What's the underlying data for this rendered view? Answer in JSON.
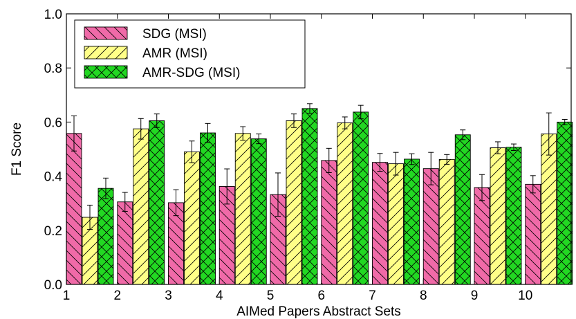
{
  "chart_data": {
    "type": "bar",
    "xlabel": "AIMed Papers Abstract Sets",
    "ylabel": "F1 Score",
    "ylim": [
      0.0,
      1.0
    ],
    "yticks": [
      "0.0",
      "0.2",
      "0.4",
      "0.6",
      "0.8",
      "1.0"
    ],
    "categories": [
      "1",
      "2",
      "3",
      "4",
      "5",
      "6",
      "7",
      "8",
      "9",
      "10"
    ],
    "legend_position": "top-left",
    "series": [
      {
        "name": "SDG (MSI)",
        "color": "#f06aa8",
        "hatch": "backslash",
        "values": [
          0.558,
          0.305,
          0.302,
          0.362,
          0.332,
          0.458,
          0.451,
          0.428,
          0.358,
          0.37
        ],
        "errors": [
          0.065,
          0.035,
          0.048,
          0.065,
          0.08,
          0.045,
          0.033,
          0.06,
          0.048,
          0.032
        ]
      },
      {
        "name": "AMR (MSI)",
        "color": "#ffff88",
        "hatch": "slash",
        "values": [
          0.248,
          0.575,
          0.49,
          0.558,
          0.605,
          0.597,
          0.446,
          0.462,
          0.505,
          0.556
        ],
        "errors": [
          0.045,
          0.038,
          0.04,
          0.025,
          0.025,
          0.022,
          0.042,
          0.018,
          0.022,
          0.078
        ]
      },
      {
        "name": "AMR-SDG (MSI)",
        "color": "#22d822",
        "hatch": "cross",
        "values": [
          0.355,
          0.605,
          0.56,
          0.538,
          0.65,
          0.637,
          0.463,
          0.553,
          0.507,
          0.6
        ],
        "errors": [
          0.038,
          0.025,
          0.035,
          0.018,
          0.018,
          0.025,
          0.02,
          0.018,
          0.012,
          0.01
        ]
      }
    ]
  }
}
